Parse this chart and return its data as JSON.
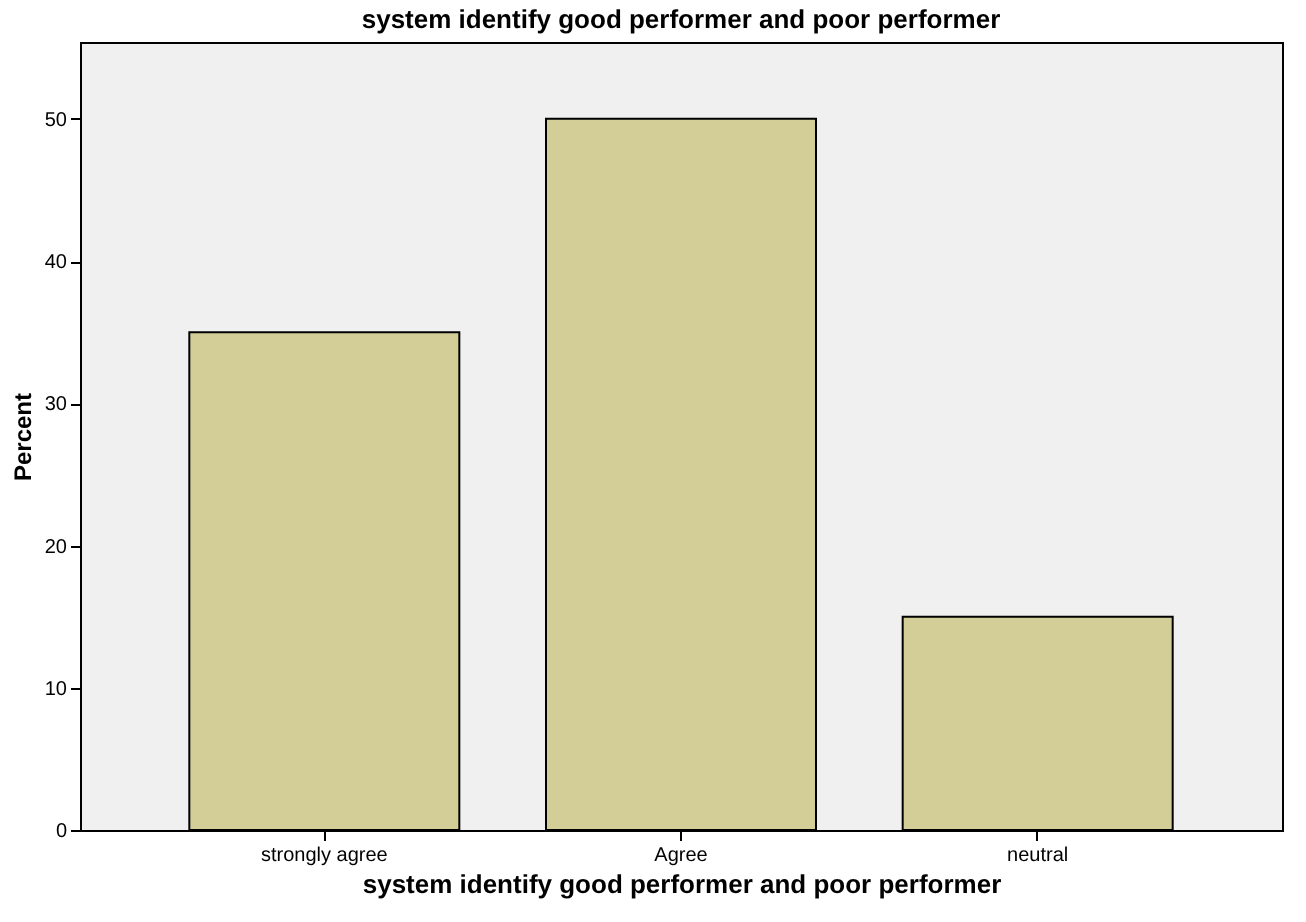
{
  "chart_data": {
    "type": "bar",
    "title": "system identify good performer and poor performer",
    "xlabel": "system identify good performer and poor performer",
    "ylabel": "Percent",
    "categories": [
      "strongly agree",
      "Agree",
      "neutral"
    ],
    "values": [
      35,
      50,
      15
    ],
    "color": "#d3ce98",
    "ylim": [
      0,
      55.4
    ],
    "yticks": [
      0,
      10,
      20,
      30,
      40,
      50
    ],
    "grid": false
  }
}
